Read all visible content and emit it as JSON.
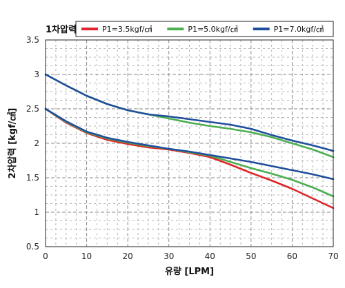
{
  "chart_data": {
    "type": "line",
    "title": "",
    "legend_title": "1차압력",
    "legend_position": "top",
    "xlabel": "유량 [LPM]",
    "ylabel": "2차압력 [kgf/㎠]",
    "xlim": [
      0,
      70
    ],
    "ylim": [
      0.5,
      3.5
    ],
    "xticks": [
      0,
      10,
      20,
      30,
      40,
      50,
      60,
      70
    ],
    "yticks": [
      0.5,
      1,
      1.5,
      2,
      2.5,
      3,
      3.5
    ],
    "ytick_labels": [
      "0.5",
      "1",
      "1.5",
      "2",
      "2.5",
      "3",
      "3.5"
    ],
    "grid": true,
    "series": [
      {
        "name": "P1=3.5kgf/㎠",
        "color": "#e0262b",
        "x": [
          0,
          5,
          10,
          15,
          20,
          25,
          30,
          35,
          40,
          45,
          50,
          55,
          60,
          65,
          70
        ],
        "y": [
          2.5,
          2.3,
          2.15,
          2.05,
          1.99,
          1.94,
          1.91,
          1.86,
          1.8,
          1.69,
          1.57,
          1.46,
          1.34,
          1.2,
          1.06
        ]
      },
      {
        "name": "P1=5.0kgf/㎠",
        "color": "#4caf50",
        "x": [
          0,
          5,
          10,
          15,
          20,
          25,
          30,
          35,
          40,
          45,
          50,
          55,
          60,
          65,
          70
        ],
        "y": [
          2.5,
          2.31,
          2.16,
          2.07,
          2.01,
          1.96,
          1.92,
          1.87,
          1.82,
          1.73,
          1.64,
          1.56,
          1.47,
          1.36,
          1.23
        ]
      },
      {
        "name": "P1=7.0kgf/㎠",
        "color": "#1f4e9c",
        "x": [
          0,
          5,
          10,
          15,
          20,
          25,
          30,
          35,
          40,
          45,
          50,
          55,
          60,
          65,
          70
        ],
        "y": [
          2.5,
          2.32,
          2.17,
          2.08,
          2.02,
          1.97,
          1.92,
          1.88,
          1.83,
          1.78,
          1.73,
          1.67,
          1.61,
          1.55,
          1.48
        ]
      },
      {
        "name": "",
        "color": "#4caf50",
        "x": [
          0,
          5,
          10,
          15,
          20,
          25,
          30,
          35,
          40,
          45,
          50,
          55,
          60,
          65,
          70
        ],
        "y": [
          3.0,
          2.84,
          2.69,
          2.57,
          2.48,
          2.42,
          2.36,
          2.3,
          2.25,
          2.21,
          2.16,
          2.09,
          2.0,
          1.91,
          1.8
        ]
      },
      {
        "name": "",
        "color": "#1f4e9c",
        "x": [
          0,
          5,
          10,
          15,
          20,
          25,
          30,
          35,
          40,
          45,
          50,
          55,
          60,
          65,
          70
        ],
        "y": [
          3.0,
          2.84,
          2.69,
          2.57,
          2.48,
          2.42,
          2.39,
          2.35,
          2.31,
          2.27,
          2.21,
          2.12,
          2.04,
          1.97,
          1.89
        ]
      }
    ]
  }
}
